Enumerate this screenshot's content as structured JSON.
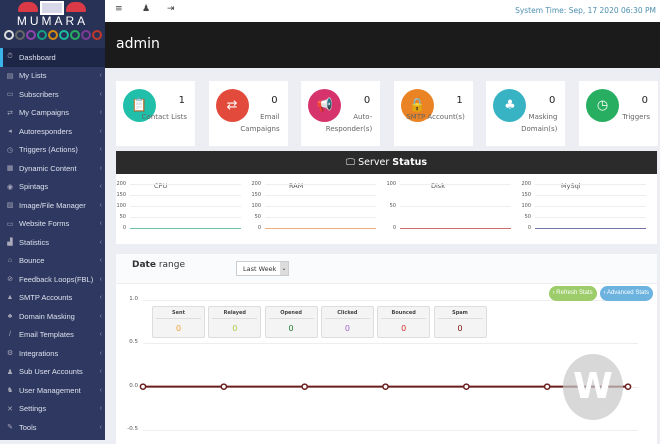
{
  "brand": {
    "name": "MUMARA",
    "circle_colors": [
      "#dddddd",
      "#666666",
      "#8e44ad",
      "#16a085",
      "#d68910",
      "#1abc9c",
      "#27ae60",
      "#7d3c98",
      "#c0392b"
    ]
  },
  "topbar": {
    "system_time": "System Time: Sep, 17 2020 06:30 PM"
  },
  "header": {
    "title": "admin"
  },
  "sidebar": {
    "items": [
      {
        "label": "Dashboard",
        "icon": "⏱",
        "active": true
      },
      {
        "label": "My Lists",
        "icon": "▤"
      },
      {
        "label": "Subscribers",
        "icon": "▭"
      },
      {
        "label": "My Campaigns",
        "icon": "⇄"
      },
      {
        "label": "Autoresponders",
        "icon": "◂"
      },
      {
        "label": "Triggers (Actions)",
        "icon": "◷"
      },
      {
        "label": "Dynamic Content",
        "icon": "▦"
      },
      {
        "label": "Spintags",
        "icon": "◉"
      },
      {
        "label": "Image/File Manager",
        "icon": "▨"
      },
      {
        "label": "Website Forms",
        "icon": "▭"
      },
      {
        "label": "Statistics",
        "icon": "▟"
      },
      {
        "label": "Bounce",
        "icon": "⌂"
      },
      {
        "label": "Feedback Loops(FBL)",
        "icon": "⊘"
      },
      {
        "label": "SMTP Accounts",
        "icon": "▲"
      },
      {
        "label": "Domain Masking",
        "icon": "♣"
      },
      {
        "label": "Email Templates",
        "icon": "/"
      },
      {
        "label": "Integrations",
        "icon": "⚙"
      },
      {
        "label": "Sub User Accounts",
        "icon": "♟"
      },
      {
        "label": "User Management",
        "icon": "♞"
      },
      {
        "label": "Settings",
        "icon": "✕"
      },
      {
        "label": "Tools",
        "icon": "✎"
      }
    ]
  },
  "cards": [
    {
      "value": "1",
      "label": "Contact Lists",
      "color": "#1fbfaa",
      "icon": "📋"
    },
    {
      "value": "0",
      "label": "Email Campaigns",
      "color": "#e24b3b",
      "icon": "⇄"
    },
    {
      "value": "0",
      "label": "Auto-Responder(s)",
      "color": "#d6336c",
      "icon": "📢"
    },
    {
      "value": "1",
      "label": "SMTP Account(s)",
      "color": "#ea8323",
      "icon": "🔒"
    },
    {
      "value": "0",
      "label": "Masking Domain(s)",
      "color": "#37b3c4",
      "icon": "♣"
    },
    {
      "value": "0",
      "label": "Triggers",
      "color": "#27ae60",
      "icon": "◷"
    }
  ],
  "server": {
    "title_light": "Server",
    "title_bold": "Status",
    "charts": [
      {
        "name": "CPU",
        "ticks": [
          "200",
          "150",
          "100",
          "50",
          "0"
        ],
        "color": "#6cc2a8"
      },
      {
        "name": "RAM",
        "ticks": [
          "200",
          "150",
          "100",
          "50",
          "0"
        ],
        "color": "#efae7c"
      },
      {
        "name": "Disk",
        "ticks": [
          "100",
          "50",
          "0"
        ],
        "color": "#cf6d6d"
      },
      {
        "name": "MySql",
        "ticks": [
          "200",
          "150",
          "100",
          "50",
          "0"
        ],
        "color": "#7474a8"
      }
    ]
  },
  "date_range": {
    "title_bold": "Date",
    "title_light": "range",
    "selected": "Last Week",
    "refresh": "› Refresh Stats",
    "advanced": "› Advanced Stats"
  },
  "stats": [
    {
      "label": "Sent",
      "value": "0",
      "color": "#f0a030"
    },
    {
      "label": "Relayed",
      "value": "0",
      "color": "#a8c840"
    },
    {
      "label": "Opened",
      "value": "0",
      "color": "#1e7a2e"
    },
    {
      "label": "Clicked",
      "value": "0",
      "color": "#a066c8"
    },
    {
      "label": "Bounced",
      "value": "0",
      "color": "#d83030"
    },
    {
      "label": "Spam",
      "value": "0",
      "color": "#7a1010"
    }
  ],
  "chart_data": {
    "type": "line",
    "y_ticks": [
      "1.0",
      "0.5",
      "0.0",
      "-0.5"
    ],
    "ylim": [
      -0.5,
      1.0
    ],
    "values": [
      0,
      0,
      0,
      0,
      0,
      0,
      0
    ]
  }
}
